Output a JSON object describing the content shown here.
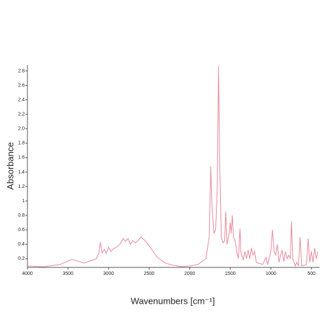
{
  "chart_data": {
    "type": "line",
    "xlabel": "Wavenumbers [cm⁻¹]",
    "ylabel": "Absorbance",
    "xlim": [
      4000,
      400
    ],
    "ylim": [
      0.08,
      2.88
    ],
    "xticks": [
      4000,
      3500,
      3000,
      2500,
      2000,
      1500,
      1000,
      500
    ],
    "yticks": [
      0.2,
      0.4,
      0.6,
      0.8,
      1,
      1.2,
      1.4,
      1.6,
      1.8,
      {
        "value": 2,
        "label": "2.0"
      },
      2.2,
      2.4,
      2.6,
      2.8
    ],
    "series": [
      {
        "color": "#e8899a",
        "x": [
          4000,
          3800,
          3600,
          3450,
          3300,
          3150,
          3120,
          3100,
          3080,
          3050,
          3030,
          3000,
          2970,
          2940,
          2900,
          2860,
          2820,
          2790,
          2760,
          2730,
          2700,
          2670,
          2640,
          2600,
          2550,
          2500,
          2450,
          2400,
          2300,
          2200,
          2100,
          2000,
          1900,
          1800,
          1760,
          1740,
          1725,
          1700,
          1680,
          1660,
          1645,
          1630,
          1610,
          1590,
          1570,
          1555,
          1540,
          1520,
          1500,
          1490,
          1475,
          1460,
          1440,
          1420,
          1400,
          1380,
          1370,
          1340,
          1320,
          1300,
          1280,
          1260,
          1240,
          1220,
          1200,
          1180,
          1100,
          1060,
          1040,
          1000,
          980,
          960,
          940,
          920,
          900,
          880,
          860,
          840,
          820,
          800,
          780,
          760,
          745,
          730,
          700,
          680,
          660,
          640,
          620,
          560,
          540,
          520,
          500,
          480,
          460,
          440,
          420
        ],
        "values": [
          0.1,
          0.09,
          0.12,
          0.19,
          0.14,
          0.2,
          0.28,
          0.43,
          0.28,
          0.33,
          0.27,
          0.36,
          0.3,
          0.34,
          0.36,
          0.4,
          0.48,
          0.44,
          0.48,
          0.4,
          0.45,
          0.42,
          0.45,
          0.5,
          0.45,
          0.38,
          0.3,
          0.22,
          0.14,
          0.11,
          0.09,
          0.1,
          0.12,
          0.2,
          0.5,
          1.48,
          0.9,
          0.55,
          0.6,
          1.2,
          2.87,
          1.5,
          0.5,
          0.42,
          0.45,
          0.85,
          0.4,
          0.5,
          0.7,
          0.55,
          0.8,
          0.5,
          0.45,
          0.3,
          0.2,
          0.62,
          0.3,
          0.18,
          0.3,
          0.2,
          0.32,
          0.2,
          0.35,
          0.25,
          0.3,
          0.15,
          0.12,
          0.22,
          0.12,
          0.3,
          0.6,
          0.3,
          0.25,
          0.4,
          0.15,
          0.25,
          0.32,
          0.16,
          0.3,
          0.2,
          0.25,
          0.2,
          0.72,
          0.2,
          0.1,
          0.15,
          0.1,
          0.5,
          0.1,
          0.12,
          0.48,
          0.15,
          0.3,
          0.15,
          0.35,
          0.2,
          0.3
        ]
      }
    ]
  }
}
